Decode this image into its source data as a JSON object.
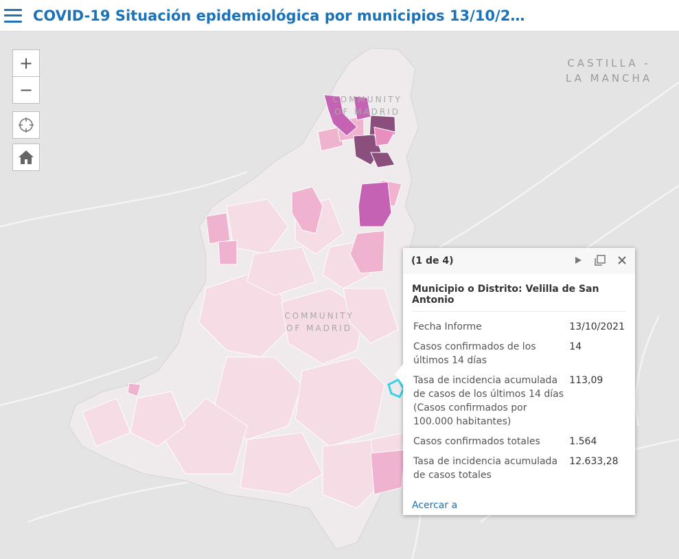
{
  "header": {
    "title": "COVID-19 Situación epidemiológica por municipios 13/10/2…",
    "menu_icon": "hamburger-menu-icon"
  },
  "map": {
    "labels": {
      "castilla": [
        "CASTILLA -",
        "LA MANCHA"
      ],
      "community_north": [
        "COMMUNITY",
        "OF MADRID"
      ],
      "community_center": [
        "COMMUNITY",
        "OF MADRID"
      ]
    },
    "selected_outline_color": "#3ad1e6",
    "choropleth_colors": [
      "#f3ecee",
      "#f6dce4",
      "#f0b3cf",
      "#e88fc0",
      "#c662b3",
      "#8a4f7d"
    ]
  },
  "controls": {
    "zoom_in": "+",
    "zoom_out": "−",
    "locate_icon": "crosshair-icon",
    "home_icon": "home-icon"
  },
  "popup": {
    "counter": "(1 de 4)",
    "title": "Municipio o Distrito: Velilla de San Antonio",
    "rows": [
      {
        "key": "Fecha Informe",
        "value": "13/10/2021"
      },
      {
        "key": "Casos confirmados de los últimos 14 días",
        "value": "14"
      },
      {
        "key": "Tasa de incidencia acumulada de casos de los últimos 14 días (Casos confirmados por 100.000 habitantes)",
        "value": "113,09"
      },
      {
        "key": "Casos confirmados totales",
        "value": "1.564"
      },
      {
        "key": "Tasa de incidencia acumulada de casos totales",
        "value": "12.633,28"
      }
    ],
    "zoom_link": "Acercar a",
    "actions": {
      "next": "play-icon",
      "dock": "dock-icon",
      "close": "close-icon"
    }
  }
}
